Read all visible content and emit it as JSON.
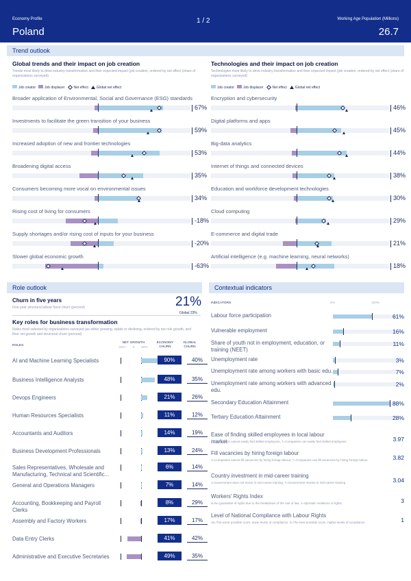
{
  "header": {
    "left": "Economy Profile",
    "page": "1 / 2",
    "right": "Working Age Population (Millions)",
    "country": "Poland",
    "value": "26.7"
  },
  "sections": {
    "trend": "Trend outlook",
    "role": "Role outlook",
    "context": "Contextual indicators"
  },
  "global_trends": {
    "title": "Global trends and their impact on job creation",
    "subtitle": "Trends most likely to drive industry transformation and their expected impact (job creation, ordered by net effect (share of organizations surveyed)",
    "legend": [
      "Job creator",
      "Job displacer",
      "Net effect",
      "Global net effect"
    ],
    "items": [
      {
        "label": "Broader application of Environmental, Social and Governance (ESG) standards",
        "value": "67%",
        "creator": 76,
        "displacer": 4,
        "net": 72,
        "global": 62
      },
      {
        "label": "Investments to facilitate the green transition of your business",
        "value": "59%",
        "creator": 74,
        "displacer": 6,
        "net": 72,
        "global": 58
      },
      {
        "label": "Increased adoption of new and frontier technologies",
        "value": "53%",
        "creator": 72,
        "displacer": 8,
        "net": 54,
        "global": 40
      },
      {
        "label": "Broadening digital access",
        "value": "35%",
        "creator": 53,
        "displacer": 22,
        "net": 30,
        "global": 40
      },
      {
        "label": "Consumers becoming more vocal on environmental issues",
        "value": "34%",
        "creator": 48,
        "displacer": 4,
        "net": 48,
        "global": 48
      },
      {
        "label": "Rising cost of living for consumers",
        "value": "-18%",
        "creator": 23,
        "displacer": 38,
        "net": -15,
        "global": -3
      },
      {
        "label": "Supply shortages and/or rising cost of inputs for your business",
        "value": "-20%",
        "creator": 18,
        "displacer": 32,
        "net": -15,
        "global": -4
      },
      {
        "label": "Slower global economic growth",
        "value": "-63%",
        "creator": 6,
        "displacer": 62,
        "net": -58,
        "global": -42
      }
    ]
  },
  "tech_trends": {
    "title": "Technologies and their impact on job creation",
    "subtitle": "Technologies most likely to drive industry transformation and their expected impact (job creation, ordered by net effect (share of organizations surveyed)",
    "legend": [
      "Job creator",
      "Job displacer",
      "Net effect",
      "Global net effect"
    ],
    "items": [
      {
        "label": "Encryption and cybersecurity",
        "value": "46%",
        "creator": 56,
        "displacer": 2,
        "net": 54,
        "global": 58
      },
      {
        "label": "Digital platforms and apps",
        "value": "45%",
        "creator": 52,
        "displacer": 7,
        "net": 45,
        "global": 55
      },
      {
        "label": "Big-data analytics",
        "value": "44%",
        "creator": 58,
        "displacer": 6,
        "net": 50,
        "global": 58
      },
      {
        "label": "Internet of things and connected devices",
        "value": "38%",
        "creator": 44,
        "displacer": 5,
        "net": 38,
        "global": 44
      },
      {
        "label": "Education and workforce development technologies",
        "value": "30%",
        "creator": 42,
        "displacer": 3,
        "net": 38,
        "global": 42
      },
      {
        "label": "Cloud computing",
        "value": "29%",
        "creator": 34,
        "displacer": 2,
        "net": 32,
        "global": 37
      },
      {
        "label": "E-commerce and digital trade",
        "value": "21%",
        "creator": 41,
        "displacer": 16,
        "net": 24,
        "global": 25
      },
      {
        "label": "Artificial intelligence (e.g. machine learning, neural networks)",
        "value": "18%",
        "creator": 44,
        "displacer": 24,
        "net": 20,
        "global": 12
      }
    ]
  },
  "churn": {
    "title": "Churn in five years",
    "subtitle": "Five-year structural labour force churn (percent)",
    "value": "21%",
    "global": "Global 23%"
  },
  "roles": {
    "title": "Key roles for business transformation",
    "subtitle": "Roles most selected by organizations surveyed (as either growing, stable or declining, ordered by net role growth, and their net growth and structural churn (percent)",
    "col_roles": "ROLES",
    "col_net": "NET GROWTH",
    "col_eco": "ECONOMY CHURN",
    "col_glob": "GLOBAL CHURN",
    "ticks": [
      "-50%",
      "0",
      "50%"
    ],
    "items": [
      {
        "label": "AI and Machine Learning Specialists",
        "churn": "90%",
        "global": "40%",
        "growth": 55
      },
      {
        "label": "Business Intelligence Analysts",
        "churn": "48%",
        "global": "35%",
        "growth": 40
      },
      {
        "label": "Devops Engineers",
        "churn": "21%",
        "global": "26%",
        "growth": 18
      },
      {
        "label": "Human Resources Specialists",
        "churn": "11%",
        "global": "12%",
        "growth": 6
      },
      {
        "label": "Accountants and Auditors",
        "churn": "14%",
        "global": "19%",
        "growth": 4
      },
      {
        "label": "Business Development Professionals",
        "churn": "13%",
        "global": "24%",
        "growth": 3
      },
      {
        "label": "Sales Representatives, Wholesale and Manufacturing, Technical and Scientific...",
        "churn": "6%",
        "global": "14%",
        "growth": 2
      },
      {
        "label": "General and Operations Managers",
        "churn": "7%",
        "global": "14%",
        "growth": 1
      },
      {
        "label": "Accounting, Bookkeeping and Payroll Clerks",
        "churn": "8%",
        "global": "29%",
        "growth": -2
      },
      {
        "label": "Assembly and Factory Workers",
        "churn": "17%",
        "global": "17%",
        "growth": -3
      },
      {
        "label": "Data Entry Clerks",
        "churn": "41%",
        "global": "42%",
        "growth": -40
      },
      {
        "label": "Administrative and Executive Secretaries",
        "churn": "49%",
        "global": "35%",
        "growth": -42
      }
    ]
  },
  "indicators": {
    "head": "INDICATORS",
    "ticks": [
      "0%",
      "100%"
    ],
    "items": [
      {
        "label": "Labour force participation",
        "value": "61%",
        "fill": 61
      },
      {
        "label": "Vulnerable employment",
        "value": "16%",
        "fill": 16
      },
      {
        "label": "Share of youth not in employment, education, or training (NEET)",
        "value": "11%",
        "fill": 11
      },
      {
        "label": "Unemployment rate",
        "value": "3%",
        "fill": 3
      },
      {
        "label": "Unemployment rate among workers with basic edu.",
        "value": "7%",
        "fill": 7
      },
      {
        "label": "Unemployment rate among workers with advanced edu.",
        "value": "2%",
        "fill": 2
      },
      {
        "label": "Secondary Education Attainment",
        "value": "88%",
        "fill": 88
      },
      {
        "label": "Tertiary Education Attainment",
        "value": "28%",
        "fill": 28
      }
    ],
    "scores": [
      {
        "label": "Ease of finding skilled employees in local labour market",
        "note": "1=Companies cannot easily find skilled employees, 7=Companies can easily find skilled employees",
        "value": "3.97"
      },
      {
        "label": "Fill vacancies by hiring foreign labour",
        "note": "1=Companies cannot fill vacancies by hiring foreign labour, 7=Companies can fill vacancies by hiring foreign labour",
        "value": "3.82"
      },
      {
        "label": "Country investment in mid-career training",
        "note": "1=Government does not invest in mid-career training, 7=Government invests in mid-career training",
        "value": "3.04"
      },
      {
        "label": "Workers' Rights Index",
        "note": "5=No guarantee of rights due to the breakdown of the rule of law, 1=Sporadic violations of rights",
        "value": "3"
      },
      {
        "label": "Level of National Compliance with Labour Rights",
        "note": "10=The worst possible score, lower levels of compliance. 0=The best possible score, higher levels of compliance",
        "value": "1"
      }
    ]
  },
  "colors": {
    "navy": "#122e8a",
    "creator": "#a8cfe6",
    "displacer": "#a891c4",
    "band": "#dbe6f4"
  }
}
